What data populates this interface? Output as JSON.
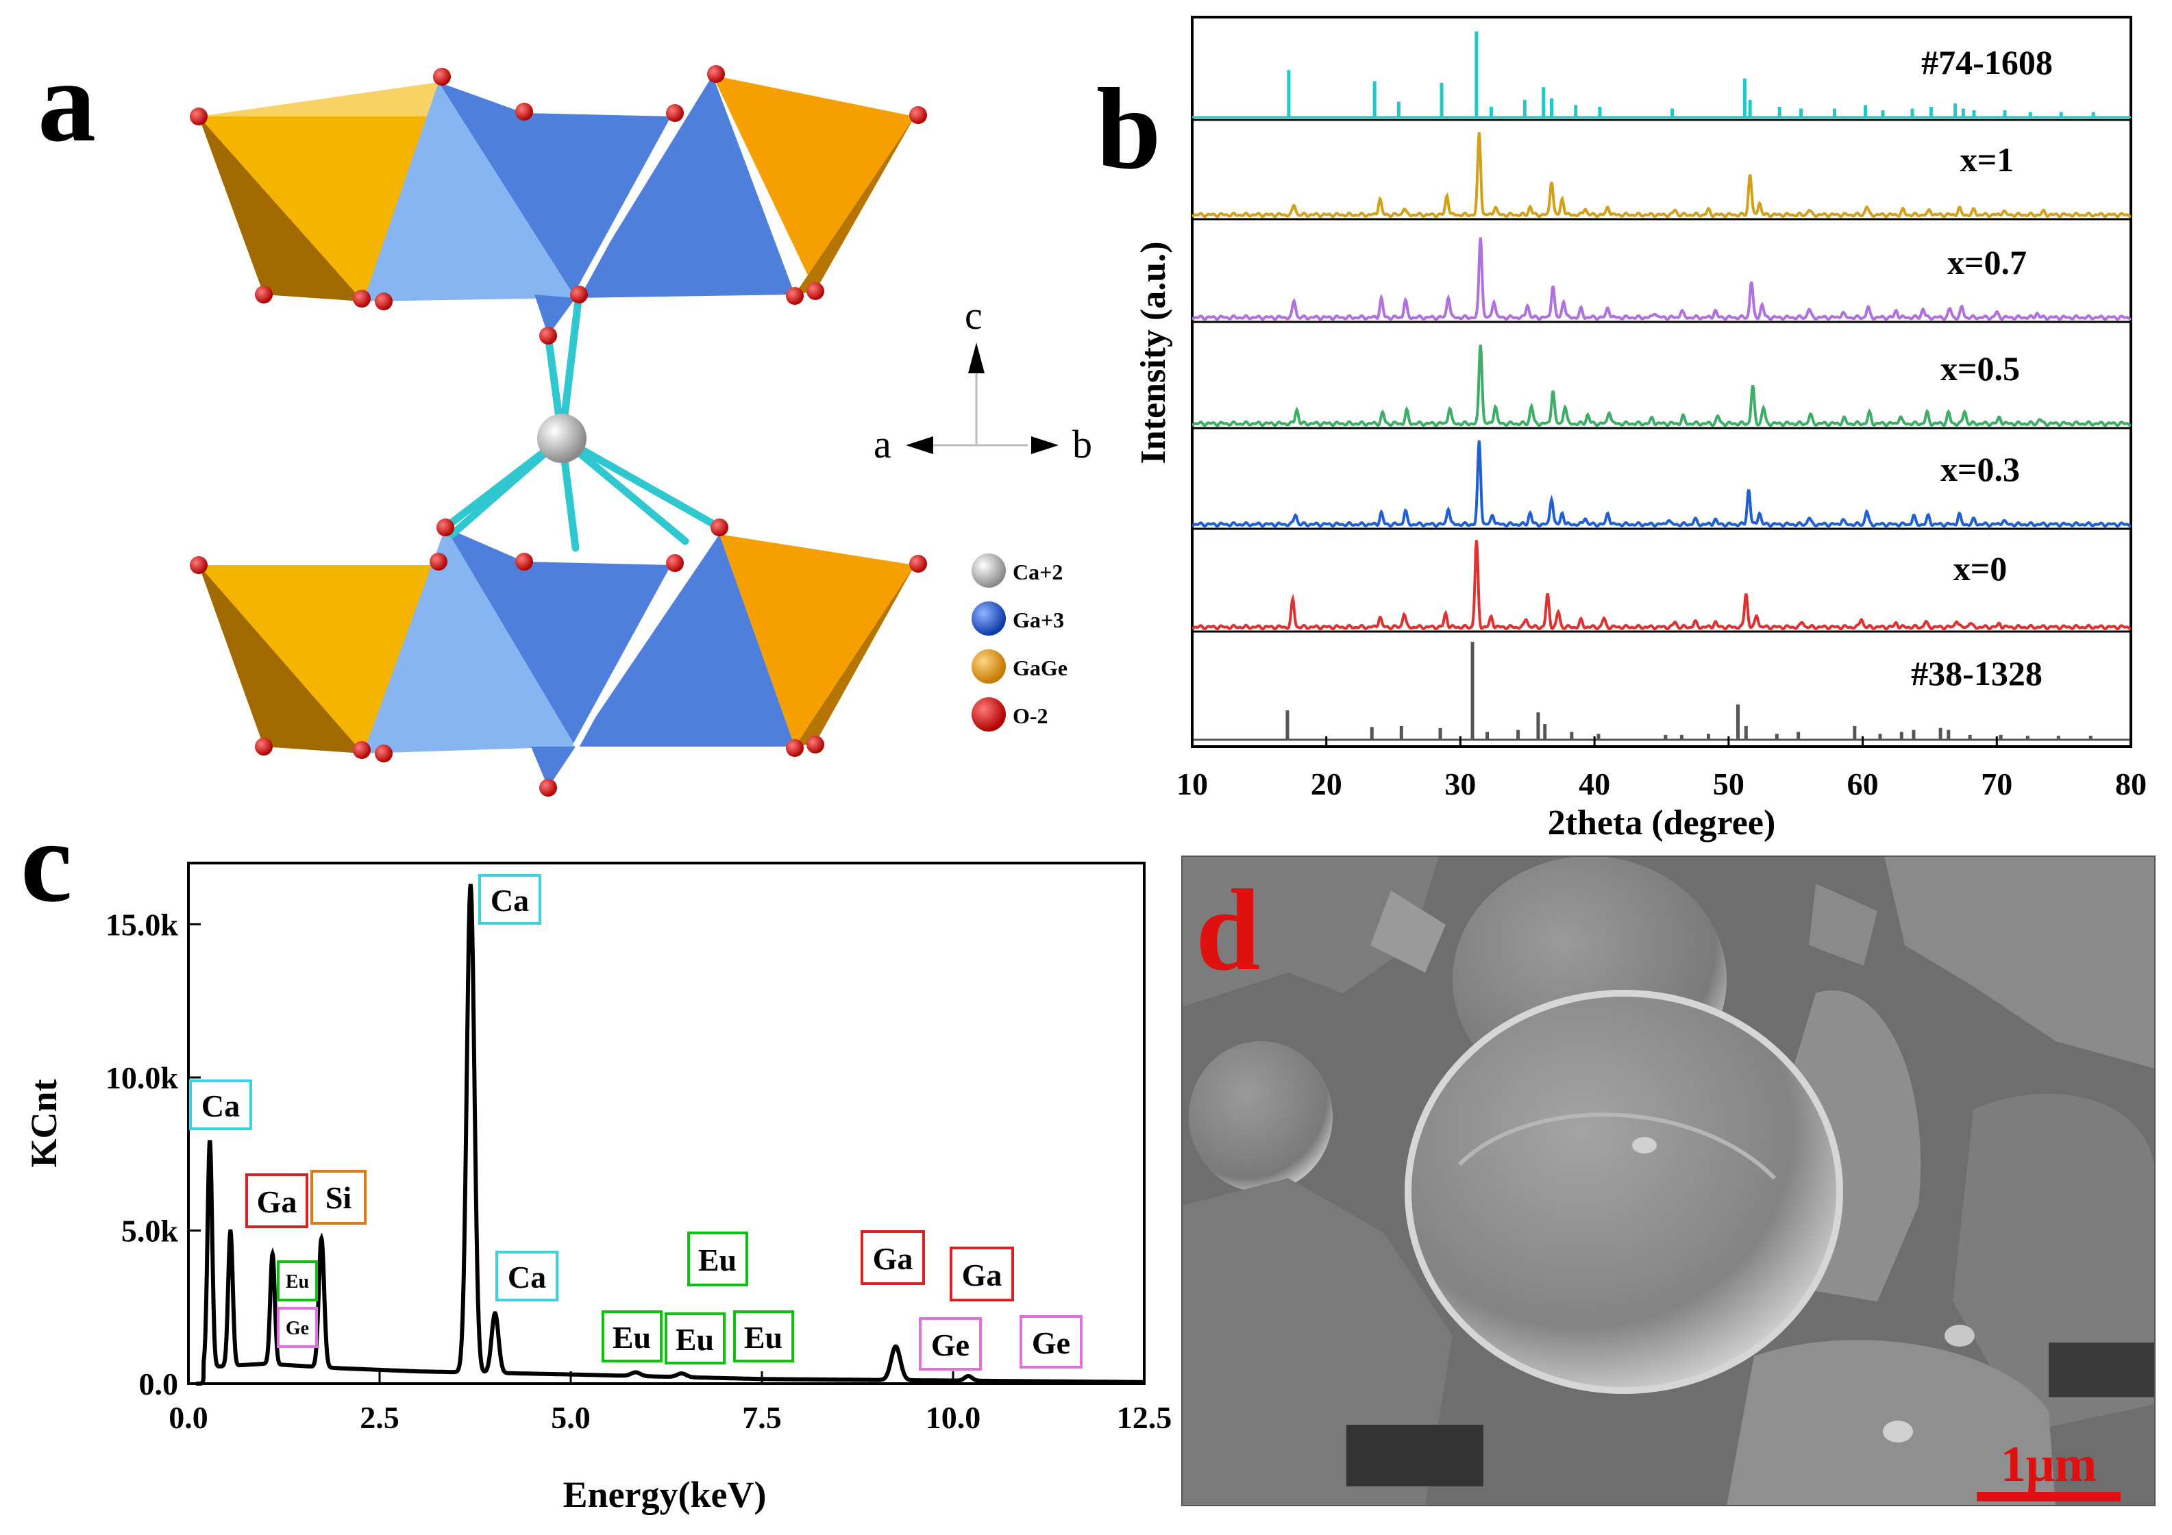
{
  "panel_labels": {
    "a": "a",
    "b": "b",
    "c": "c",
    "d": "d"
  },
  "structure": {
    "axis_c": "c",
    "axis_a": "a",
    "axis_b": "b",
    "legend": [
      {
        "label": "Ca+2",
        "color": "#d9d9d9"
      },
      {
        "label": "Ga+3",
        "color": "#1f5bd6"
      },
      {
        "label": "GaGe",
        "color": "#f0a010"
      },
      {
        "label": "O-2",
        "color": "#e01010"
      }
    ],
    "colors": {
      "orange": "#f5b400",
      "orange_dark": "#a06a00",
      "blue": "#4f7fdc",
      "blue_light": "#86b5f2",
      "bond": "#30c8d0",
      "oxygen": "#e00000"
    }
  },
  "scale_bar": "1μm",
  "chart_data": [
    {
      "type": "line",
      "panel": "b",
      "title": "",
      "xlabel": "2theta (degree)",
      "ylabel": "Intensity (a.u.)",
      "xlim": [
        10,
        80
      ],
      "xticks": [
        10,
        20,
        30,
        40,
        50,
        60,
        70,
        80
      ],
      "series": [
        {
          "name": "#74-1608",
          "style": "sticks",
          "color": "#22c7c7",
          "peaks": [
            [
              17.2,
              0.55
            ],
            [
              23.6,
              0.42
            ],
            [
              25.4,
              0.18
            ],
            [
              28.6,
              0.4
            ],
            [
              31.2,
              1.0
            ],
            [
              32.3,
              0.12
            ],
            [
              34.8,
              0.2
            ],
            [
              36.2,
              0.35
            ],
            [
              36.8,
              0.22
            ],
            [
              38.6,
              0.14
            ],
            [
              40.4,
              0.12
            ],
            [
              45.8,
              0.1
            ],
            [
              51.2,
              0.45
            ],
            [
              51.6,
              0.2
            ],
            [
              53.8,
              0.12
            ],
            [
              55.4,
              0.1
            ],
            [
              57.9,
              0.1
            ],
            [
              60.2,
              0.14
            ],
            [
              61.5,
              0.08
            ],
            [
              63.7,
              0.1
            ],
            [
              65.1,
              0.12
            ],
            [
              66.9,
              0.16
            ],
            [
              67.5,
              0.1
            ],
            [
              68.3,
              0.08
            ],
            [
              70.6,
              0.08
            ],
            [
              72.5,
              0.06
            ],
            [
              74.8,
              0.06
            ],
            [
              77.2,
              0.06
            ]
          ]
        },
        {
          "name": "x=1",
          "style": "profile",
          "color": "#d4a017",
          "peaks": [
            [
              17.6,
              0.12
            ],
            [
              24.0,
              0.2
            ],
            [
              25.8,
              0.08
            ],
            [
              29.0,
              0.24
            ],
            [
              31.4,
              1.0
            ],
            [
              32.6,
              0.1
            ],
            [
              35.2,
              0.1
            ],
            [
              36.8,
              0.42
            ],
            [
              37.6,
              0.2
            ],
            [
              39.3,
              0.08
            ],
            [
              41.0,
              0.1
            ],
            [
              46.0,
              0.06
            ],
            [
              48.5,
              0.06
            ],
            [
              51.6,
              0.5
            ],
            [
              52.3,
              0.15
            ],
            [
              56.0,
              0.06
            ],
            [
              60.3,
              0.1
            ],
            [
              63.0,
              0.06
            ],
            [
              65.0,
              0.06
            ],
            [
              67.2,
              0.08
            ],
            [
              68.3,
              0.06
            ],
            [
              70.5,
              0.05
            ],
            [
              73.5,
              0.04
            ]
          ]
        },
        {
          "name": "x=0.7",
          "style": "profile",
          "color": "#b070e0",
          "peaks": [
            [
              17.6,
              0.2
            ],
            [
              24.1,
              0.22
            ],
            [
              25.9,
              0.2
            ],
            [
              29.1,
              0.25
            ],
            [
              31.5,
              0.95
            ],
            [
              32.5,
              0.2
            ],
            [
              35.0,
              0.15
            ],
            [
              36.9,
              0.38
            ],
            [
              37.7,
              0.2
            ],
            [
              39.0,
              0.1
            ],
            [
              41.0,
              0.12
            ],
            [
              44.5,
              0.06
            ],
            [
              46.5,
              0.08
            ],
            [
              49.0,
              0.08
            ],
            [
              51.7,
              0.42
            ],
            [
              52.5,
              0.15
            ],
            [
              56.0,
              0.1
            ],
            [
              58.5,
              0.06
            ],
            [
              60.4,
              0.12
            ],
            [
              62.5,
              0.08
            ],
            [
              64.5,
              0.1
            ],
            [
              66.5,
              0.1
            ],
            [
              67.4,
              0.12
            ],
            [
              70.0,
              0.06
            ],
            [
              73.0,
              0.05
            ]
          ]
        },
        {
          "name": "x=0.5",
          "style": "profile",
          "color": "#3cae66",
          "peaks": [
            [
              17.8,
              0.16
            ],
            [
              24.2,
              0.12
            ],
            [
              26.0,
              0.14
            ],
            [
              29.2,
              0.18
            ],
            [
              31.5,
              0.9
            ],
            [
              32.6,
              0.2
            ],
            [
              35.3,
              0.2
            ],
            [
              36.9,
              0.38
            ],
            [
              37.8,
              0.2
            ],
            [
              39.5,
              0.1
            ],
            [
              41.1,
              0.14
            ],
            [
              44.3,
              0.06
            ],
            [
              46.6,
              0.08
            ],
            [
              49.2,
              0.08
            ],
            [
              51.8,
              0.42
            ],
            [
              52.6,
              0.18
            ],
            [
              56.1,
              0.1
            ],
            [
              58.6,
              0.06
            ],
            [
              60.5,
              0.12
            ],
            [
              62.8,
              0.08
            ],
            [
              64.8,
              0.12
            ],
            [
              66.4,
              0.12
            ],
            [
              67.6,
              0.14
            ],
            [
              70.2,
              0.07
            ],
            [
              73.2,
              0.05
            ]
          ]
        },
        {
          "name": "x=0.3",
          "style": "profile",
          "color": "#1f5fd6",
          "peaks": [
            [
              17.7,
              0.12
            ],
            [
              24.1,
              0.14
            ],
            [
              25.9,
              0.16
            ],
            [
              29.1,
              0.2
            ],
            [
              31.4,
              1.0
            ],
            [
              32.4,
              0.12
            ],
            [
              35.2,
              0.14
            ],
            [
              36.8,
              0.32
            ],
            [
              37.6,
              0.14
            ],
            [
              39.3,
              0.08
            ],
            [
              41.0,
              0.14
            ],
            [
              45.5,
              0.06
            ],
            [
              47.5,
              0.06
            ],
            [
              49.0,
              0.06
            ],
            [
              51.5,
              0.42
            ],
            [
              52.3,
              0.14
            ],
            [
              56.0,
              0.08
            ],
            [
              58.5,
              0.06
            ],
            [
              60.3,
              0.16
            ],
            [
              63.8,
              0.1
            ],
            [
              64.9,
              0.1
            ],
            [
              67.2,
              0.12
            ],
            [
              68.3,
              0.06
            ],
            [
              70.5,
              0.05
            ]
          ]
        },
        {
          "name": "x=0",
          "style": "profile",
          "color": "#e03030",
          "peaks": [
            [
              17.5,
              0.32
            ],
            [
              24.0,
              0.12
            ],
            [
              25.8,
              0.16
            ],
            [
              28.9,
              0.16
            ],
            [
              31.2,
              1.0
            ],
            [
              32.3,
              0.12
            ],
            [
              34.9,
              0.1
            ],
            [
              36.5,
              0.38
            ],
            [
              37.3,
              0.18
            ],
            [
              39.0,
              0.08
            ],
            [
              40.7,
              0.1
            ],
            [
              46.0,
              0.06
            ],
            [
              47.5,
              0.06
            ],
            [
              49.0,
              0.06
            ],
            [
              51.3,
              0.4
            ],
            [
              52.1,
              0.14
            ],
            [
              55.5,
              0.06
            ],
            [
              59.9,
              0.1
            ],
            [
              62.5,
              0.05
            ],
            [
              64.7,
              0.06
            ],
            [
              67.0,
              0.08
            ],
            [
              68.0,
              0.05
            ],
            [
              70.2,
              0.04
            ]
          ]
        },
        {
          "name": "#38-1328",
          "style": "sticks",
          "color": "#555555",
          "peaks": [
            [
              17.1,
              0.3
            ],
            [
              23.4,
              0.13
            ],
            [
              25.6,
              0.14
            ],
            [
              28.5,
              0.12
            ],
            [
              30.9,
              1.0
            ],
            [
              32.0,
              0.08
            ],
            [
              34.3,
              0.1
            ],
            [
              35.8,
              0.28
            ],
            [
              36.3,
              0.16
            ],
            [
              38.3,
              0.08
            ],
            [
              40.3,
              0.06
            ],
            [
              45.3,
              0.05
            ],
            [
              46.5,
              0.05
            ],
            [
              48.5,
              0.06
            ],
            [
              50.7,
              0.36
            ],
            [
              51.3,
              0.14
            ],
            [
              53.6,
              0.06
            ],
            [
              55.2,
              0.08
            ],
            [
              59.4,
              0.14
            ],
            [
              61.3,
              0.06
            ],
            [
              62.9,
              0.08
            ],
            [
              63.8,
              0.1
            ],
            [
              65.8,
              0.12
            ],
            [
              66.4,
              0.1
            ],
            [
              68.0,
              0.05
            ],
            [
              70.3,
              0.05
            ],
            [
              72.3,
              0.04
            ],
            [
              74.6,
              0.04
            ],
            [
              77.0,
              0.04
            ]
          ]
        }
      ]
    },
    {
      "type": "line",
      "panel": "c",
      "title": "",
      "xlabel": "Energy(keV)",
      "ylabel": "KCnt",
      "xlim": [
        0,
        12.5
      ],
      "ylim": [
        0,
        17
      ],
      "xticks": [
        "0.0",
        "2.5",
        "5.0",
        "7.5",
        "10.0",
        "12.5"
      ],
      "yticks": [
        "0.0",
        "5.0k",
        "10.0k",
        "15.0k"
      ],
      "baseline": [
        [
          0,
          0.5
        ],
        [
          1,
          0.65
        ],
        [
          2,
          0.5
        ],
        [
          3,
          0.4
        ],
        [
          5,
          0.3
        ],
        [
          7.5,
          0.15
        ],
        [
          10,
          0.1
        ],
        [
          12.5,
          0.05
        ]
      ],
      "peaks": [
        {
          "center": 0.28,
          "height": 7.4,
          "width": 0.03
        },
        {
          "center": 0.55,
          "height": 4.4,
          "width": 0.03
        },
        {
          "center": 1.1,
          "height": 3.6,
          "width": 0.03
        },
        {
          "center": 1.74,
          "height": 4.2,
          "width": 0.035
        },
        {
          "center": 3.69,
          "height": 15.9,
          "width": 0.05
        },
        {
          "center": 4.01,
          "height": 1.95,
          "width": 0.045
        },
        {
          "center": 5.85,
          "height": 0.12,
          "width": 0.06
        },
        {
          "center": 6.45,
          "height": 0.12,
          "width": 0.06
        },
        {
          "center": 9.25,
          "height": 1.1,
          "width": 0.06
        },
        {
          "center": 10.2,
          "height": 0.15,
          "width": 0.05
        }
      ],
      "annotations": [
        {
          "label": "Ca",
          "color": "#3cd0e0",
          "size": "l"
        },
        {
          "label": "Ca",
          "color": "#3cd0e0",
          "size": "l"
        },
        {
          "label": "Ga",
          "color": "#e02020",
          "size": "l"
        },
        {
          "label": "Si",
          "color": "#e07a10",
          "size": "l"
        },
        {
          "label": "Eu",
          "color": "#10c010",
          "size": "s"
        },
        {
          "label": "Ge",
          "color": "#e070e0",
          "size": "s"
        },
        {
          "label": "Ca",
          "color": "#3cd0e0",
          "size": "l"
        },
        {
          "label": "Eu",
          "color": "#10c010",
          "size": "l"
        },
        {
          "label": "Eu",
          "color": "#10c010",
          "size": "l"
        },
        {
          "label": "Eu",
          "color": "#10c010",
          "size": "l"
        },
        {
          "label": "Eu",
          "color": "#10c010",
          "size": "l"
        },
        {
          "label": "Ga",
          "color": "#e02020",
          "size": "l"
        },
        {
          "label": "Ga",
          "color": "#e02020",
          "size": "l"
        },
        {
          "label": "Ge",
          "color": "#e070e0",
          "size": "l"
        },
        {
          "label": "Ge",
          "color": "#e070e0",
          "size": "l"
        }
      ]
    }
  ]
}
